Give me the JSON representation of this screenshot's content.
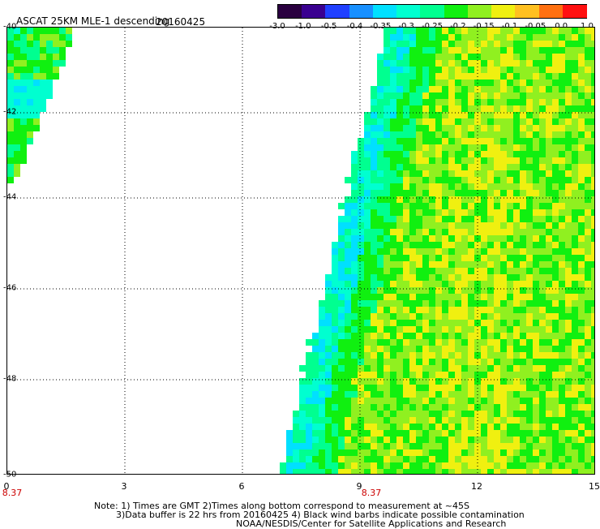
{
  "header": {
    "title": "ASCAT 25KM MLE-1 descending",
    "date": "20160425"
  },
  "colorbar": {
    "tick_labels": [
      "-3.0",
      "-1.0",
      "-0.5",
      "-0.4",
      "-0.35",
      "-0.3",
      "-0.25",
      "-0.2",
      "-0.15",
      "-0.1",
      "-0.05",
      "0.0",
      "1.0"
    ],
    "colors": [
      "#2a0040",
      "#3a0090",
      "#2040ff",
      "#1890ff",
      "#00e0ff",
      "#00ffd0",
      "#00ff90",
      "#10f010",
      "#90f020",
      "#f0f010",
      "#ffc020",
      "#ff7010",
      "#ff1010"
    ]
  },
  "map": {
    "lat_labels": [
      "-40",
      "-42",
      "-44",
      "-46",
      "-48",
      "-50"
    ],
    "lon_labels": [
      "0",
      "3",
      "6",
      "9",
      "12",
      "15"
    ],
    "time_marks": [
      "8.37",
      "8.37"
    ]
  },
  "notes": {
    "line1": "Note: 1) Times are GMT 2)Times along bottom correspond to measurement at ~45S",
    "line2": "3)Data buffer is 22 hrs from 20160425 4) Black wind barbs indicate possible contamination",
    "line3": "NOAA/NESDIS/Center for Satellite Applications and Research"
  }
}
